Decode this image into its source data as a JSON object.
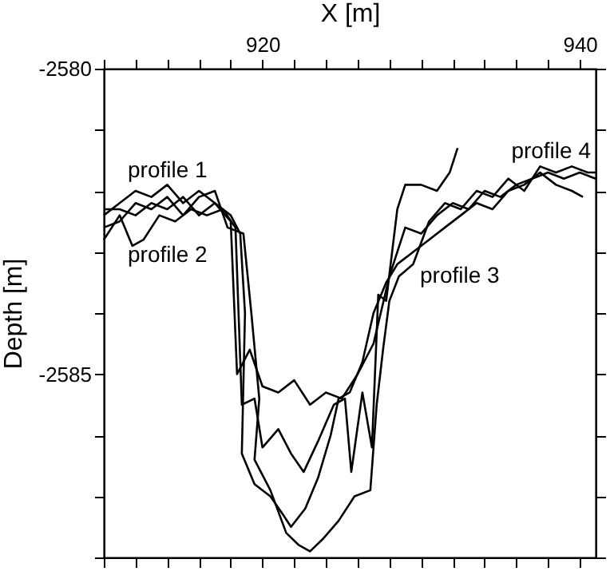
{
  "chart_data": {
    "type": "line",
    "xlabel": "X [m]",
    "ylabel": "Depth [m]",
    "xlim": [
      910,
      941
    ],
    "ylim": [
      -2588,
      -2580
    ],
    "xticks": [
      {
        "value": 910,
        "label": null
      },
      {
        "value": 912,
        "label": null
      },
      {
        "value": 914,
        "label": null
      },
      {
        "value": 916,
        "label": null
      },
      {
        "value": 918,
        "label": null
      },
      920,
      {
        "value": 922,
        "label": null
      },
      {
        "value": 924,
        "label": null
      },
      {
        "value": 926,
        "label": null
      },
      {
        "value": 928,
        "label": null
      },
      {
        "value": 930,
        "label": null
      },
      {
        "value": 932,
        "label": null
      },
      {
        "value": 934,
        "label": null
      },
      {
        "value": 936,
        "label": null
      },
      {
        "value": 938,
        "label": null
      },
      940
    ],
    "yticks": [
      {
        "value": -2588,
        "label": null
      },
      {
        "value": -2587,
        "label": null
      },
      {
        "value": -2586,
        "label": null
      },
      -2585,
      {
        "value": -2584,
        "label": null
      },
      {
        "value": -2583,
        "label": null
      },
      {
        "value": -2582,
        "label": null
      },
      {
        "value": -2581,
        "label": null
      },
      -2580
    ],
    "grid": false,
    "marker": "none",
    "line_style": "solid",
    "series": [
      {
        "name": "profile 1",
        "color": "#000000",
        "x": [
          910,
          911,
          912,
          913,
          914,
          915,
          916,
          917,
          918,
          918.4,
          919.2,
          920,
          921,
          922,
          923,
          924,
          925,
          926,
          927,
          928,
          929,
          930,
          931,
          932,
          933,
          934,
          935,
          936,
          937,
          938,
          939,
          940,
          941
        ],
        "values": [
          -2582.4,
          -2582.2,
          -2582.0,
          -2582.1,
          -2581.9,
          -2582.2,
          -2582.0,
          -2582.2,
          -2582.5,
          -2585.0,
          -2584.6,
          -2585.2,
          -2585.3,
          -2585.1,
          -2585.5,
          -2585.3,
          -2585.4,
          -2585.0,
          -2584.5,
          -2583.4,
          -2582.6,
          -2582.7,
          -2582.4,
          -2582.2,
          -2582.3,
          -2582.0,
          -2582.1,
          -2581.9,
          -2581.8,
          -2581.7,
          -2581.8,
          -2581.7,
          -2581.8
        ]
      },
      {
        "name": "profile 2",
        "color": "#000000",
        "x": [
          910,
          911,
          911.8,
          912.5,
          913.5,
          914.5,
          915.5,
          916.5,
          917.5,
          918.3,
          918.7,
          919.5,
          920,
          921,
          921.8,
          922.6,
          923.5,
          924.5,
          925.2,
          925.6,
          926.3,
          926.9,
          927.3,
          927.8,
          928.5,
          929,
          930,
          931,
          931.8,
          932.3
        ],
        "values": [
          -2582.8,
          -2582.4,
          -2582.9,
          -2582.8,
          -2582.4,
          -2582.5,
          -2582.3,
          -2582.4,
          -2582.3,
          -2582.6,
          -2585.5,
          -2585.4,
          -2586.2,
          -2585.9,
          -2586.3,
          -2586.6,
          -2586.1,
          -2585.5,
          -2585.4,
          -2586.6,
          -2585.3,
          -2586.2,
          -2583.7,
          -2583.8,
          -2582.3,
          -2581.9,
          -2581.9,
          -2582.0,
          -2581.7,
          -2581.3
        ]
      },
      {
        "name": "profile 3",
        "color": "#000000",
        "x": [
          910,
          911,
          912,
          913,
          914,
          915,
          916,
          917,
          918,
          918.6,
          918.9,
          918.7,
          919.5,
          920.5,
          921.3,
          921.8,
          922.7,
          923.5,
          924.3,
          924.8,
          925.5,
          926.3,
          927,
          927.8,
          928.5,
          929.5,
          930.5,
          931.5,
          932.5,
          933.5,
          934.5,
          935.5,
          936.5,
          937.5,
          938.5,
          939.5,
          940.2
        ],
        "values": [
          -2582.3,
          -2582.3,
          -2582.4,
          -2582.2,
          -2582.3,
          -2582.1,
          -2582.4,
          -2582.2,
          -2582.4,
          -2582.7,
          -2584.0,
          -2586.3,
          -2586.8,
          -2587.0,
          -2587.3,
          -2587.5,
          -2587.2,
          -2586.7,
          -2586.0,
          -2585.4,
          -2585.3,
          -2584.8,
          -2584.0,
          -2583.5,
          -2583.2,
          -2583.0,
          -2582.8,
          -2582.6,
          -2582.4,
          -2582.2,
          -2582.3,
          -2582.0,
          -2581.9,
          -2581.7,
          -2581.9,
          -2582.0,
          -2582.1
        ]
      },
      {
        "name": "profile 4",
        "color": "#000000",
        "x": [
          910,
          911,
          912,
          913,
          914,
          915,
          916,
          917,
          917.8,
          918.8,
          919.3,
          919.8,
          919.5,
          920.5,
          921.5,
          922.3,
          923,
          923.8,
          924.8,
          925.8,
          926.8,
          927.2,
          927.6,
          928,
          928.6,
          929.5,
          930.5,
          931.5,
          932.5,
          933.5,
          934.5,
          935.5,
          936.5,
          937.5,
          938.5,
          939.5,
          940.5,
          941
        ],
        "values": [
          -2582.6,
          -2582.5,
          -2582.2,
          -2582.3,
          -2582.1,
          -2582.4,
          -2582.1,
          -2582.0,
          -2582.6,
          -2582.7,
          -2584.0,
          -2585.4,
          -2586.4,
          -2586.9,
          -2587.6,
          -2587.8,
          -2587.9,
          -2587.7,
          -2587.4,
          -2587.0,
          -2586.9,
          -2585.5,
          -2584.6,
          -2583.8,
          -2583.4,
          -2583.2,
          -2582.5,
          -2582.2,
          -2582.3,
          -2582.0,
          -2582.1,
          -2581.8,
          -2582.0,
          -2581.6,
          -2581.7,
          -2581.6,
          -2581.7,
          -2581.7
        ]
      }
    ]
  }
}
